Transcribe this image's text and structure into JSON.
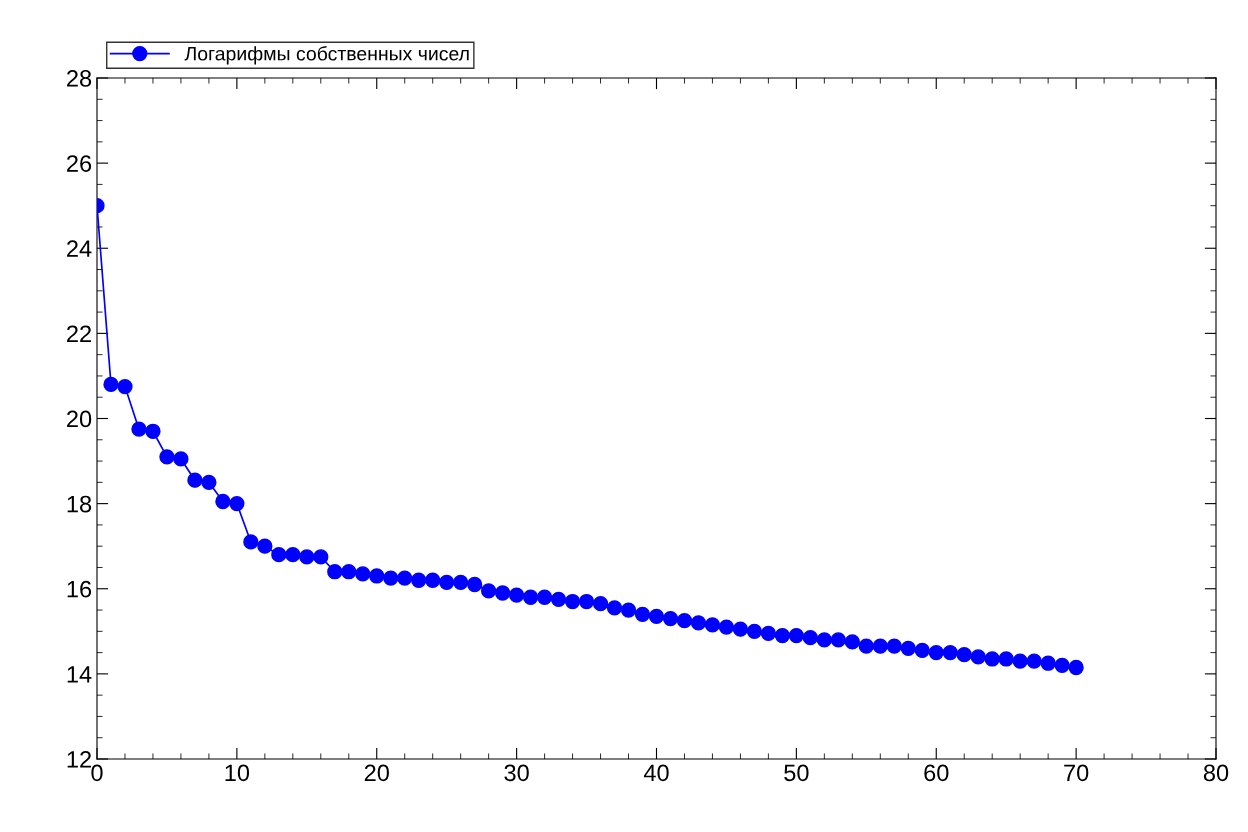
{
  "chart_data": {
    "type": "line",
    "x": [
      0,
      1,
      2,
      3,
      4,
      5,
      6,
      7,
      8,
      9,
      10,
      11,
      12,
      13,
      14,
      15,
      16,
      17,
      18,
      19,
      20,
      21,
      22,
      23,
      24,
      25,
      26,
      27,
      28,
      29,
      30,
      31,
      32,
      33,
      34,
      35,
      36,
      37,
      38,
      39,
      40,
      41,
      42,
      43,
      44,
      45,
      46,
      47,
      48,
      49,
      50,
      51,
      52,
      53,
      54,
      55,
      56,
      57,
      58,
      59,
      60,
      61,
      62,
      63,
      64,
      65,
      66,
      67,
      68,
      69,
      70
    ],
    "series": [
      {
        "name": "Логарифмы собственных чисел",
        "color": "#0000ff",
        "values": [
          25.0,
          20.8,
          20.75,
          19.75,
          19.7,
          19.1,
          19.05,
          18.55,
          18.5,
          18.05,
          18.0,
          17.1,
          17.0,
          16.8,
          16.8,
          16.75,
          16.75,
          16.4,
          16.4,
          16.35,
          16.3,
          16.25,
          16.25,
          16.2,
          16.2,
          16.15,
          16.15,
          16.1,
          15.95,
          15.9,
          15.85,
          15.8,
          15.8,
          15.75,
          15.7,
          15.7,
          15.65,
          15.55,
          15.5,
          15.4,
          15.35,
          15.3,
          15.25,
          15.2,
          15.15,
          15.1,
          15.05,
          15.0,
          14.95,
          14.9,
          14.9,
          14.85,
          14.8,
          14.8,
          14.75,
          14.65,
          14.65,
          14.65,
          14.6,
          14.55,
          14.5,
          14.5,
          14.45,
          14.4,
          14.35,
          14.35,
          14.3,
          14.3,
          14.25,
          14.2,
          14.15
        ]
      }
    ],
    "xlim": [
      0,
      80
    ],
    "xticks": [
      0,
      10,
      20,
      30,
      40,
      50,
      60,
      70,
      80
    ],
    "ylim": [
      12,
      28
    ],
    "yticks": [
      12,
      14,
      16,
      18,
      20,
      22,
      24,
      26,
      28
    ],
    "marker": "circle",
    "line_style": "solid",
    "legend": "top left",
    "grid": false
  }
}
